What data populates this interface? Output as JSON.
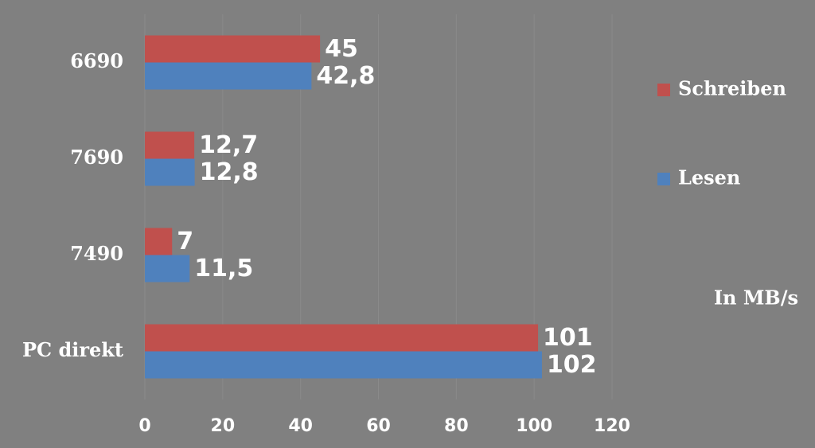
{
  "chart_data": {
    "type": "bar",
    "orientation": "horizontal",
    "categories": [
      "6690",
      "7690",
      "7490",
      "PC direkt"
    ],
    "series": [
      {
        "name": "Schreiben",
        "color": "#c0504d",
        "values": [
          45,
          12.7,
          7,
          101
        ],
        "value_labels": [
          "45",
          "12,7",
          "7",
          "101"
        ]
      },
      {
        "name": "Lesen",
        "color": "#4f81bd",
        "values": [
          42.8,
          12.8,
          11.5,
          102
        ],
        "value_labels": [
          "42,8",
          "12,8",
          "11,5",
          "102"
        ]
      }
    ],
    "xlim": [
      0,
      120
    ],
    "xticks": [
      0,
      20,
      40,
      60,
      80,
      100,
      120
    ],
    "grid": true,
    "legend": "right",
    "annotation": "In MB/s"
  }
}
